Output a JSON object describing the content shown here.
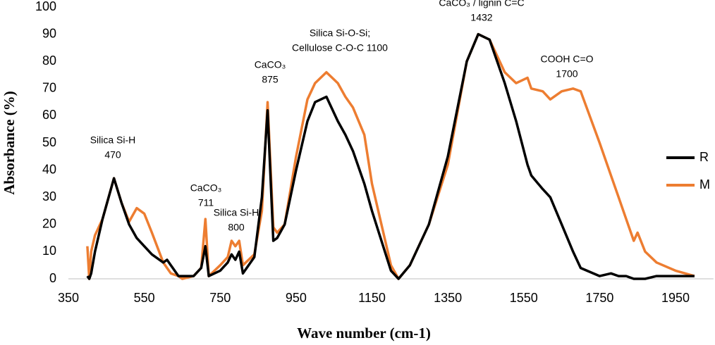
{
  "chart_data": {
    "type": "line",
    "x_label": "Wave number (cm-1)",
    "y_label": "Absorbance (%)",
    "x": [
      400,
      405,
      410,
      420,
      440,
      470,
      490,
      510,
      530,
      550,
      570,
      600,
      610,
      620,
      640,
      650,
      680,
      700,
      711,
      720,
      750,
      770,
      780,
      790,
      800,
      810,
      840,
      860,
      875,
      890,
      900,
      920,
      950,
      980,
      1000,
      1030,
      1060,
      1080,
      1100,
      1130,
      1150,
      1200,
      1220,
      1250,
      1300,
      1350,
      1400,
      1430,
      1460,
      1500,
      1530,
      1560,
      1570,
      1600,
      1620,
      1650,
      1680,
      1700,
      1750,
      1780,
      1800,
      1820,
      1840,
      1850,
      1870,
      1900,
      1950,
      2000
    ],
    "series": [
      {
        "name": "R",
        "color": "#000000",
        "values": [
          1,
          0,
          2,
          10,
          22,
          37,
          28,
          20,
          15,
          12,
          9,
          6,
          7,
          5,
          1,
          1,
          1,
          4,
          12,
          1,
          3,
          6,
          9,
          7,
          10,
          2,
          8,
          30,
          62,
          14,
          15,
          20,
          40,
          58,
          65,
          67,
          58,
          53,
          47,
          35,
          25,
          3,
          0,
          5,
          20,
          45,
          80,
          90,
          88,
          72,
          58,
          42,
          38,
          33,
          30,
          20,
          10,
          4,
          1,
          2,
          1,
          1,
          0,
          0,
          0,
          1,
          1,
          1
        ]
      },
      {
        "name": "M",
        "color": "#ed7d31",
        "values": [
          12,
          0,
          10,
          16,
          22,
          37,
          28,
          21,
          26,
          24,
          17,
          6,
          4,
          2,
          1,
          0,
          1,
          4,
          22,
          1,
          5,
          8,
          14,
          12,
          14,
          5,
          9,
          25,
          65,
          19,
          17,
          20,
          45,
          66,
          72,
          76,
          72,
          67,
          63,
          53,
          35,
          5,
          0,
          5,
          20,
          42,
          80,
          90,
          88,
          76,
          72,
          74,
          70,
          69,
          66,
          69,
          70,
          69,
          50,
          38,
          30,
          22,
          14,
          17,
          10,
          6,
          3,
          1
        ]
      }
    ],
    "xlim": [
      350,
      2050
    ],
    "xticks": [
      350,
      550,
      750,
      950,
      1150,
      1350,
      1550,
      1750,
      1950
    ],
    "ylim": [
      0,
      100
    ],
    "yticks": [
      0,
      10,
      20,
      30,
      40,
      50,
      60,
      70,
      80,
      90,
      100
    ],
    "grid": false,
    "legend": "right",
    "annotations": [
      {
        "lines": [
          "Silica Si-H",
          "470"
        ]
      },
      {
        "lines": [
          "CaCO₃",
          "711"
        ]
      },
      {
        "lines": [
          "Silica Si-H",
          "800"
        ]
      },
      {
        "lines": [
          "CaCO₃",
          "875"
        ]
      },
      {
        "lines": [
          "Silica Si-O-Si;",
          "Cellulose C-O-C 1100"
        ]
      },
      {
        "lines": [
          "CaCO₃ / lignin C=C",
          "1432"
        ]
      },
      {
        "lines": [
          "COOH C=O",
          "1700"
        ]
      }
    ]
  }
}
